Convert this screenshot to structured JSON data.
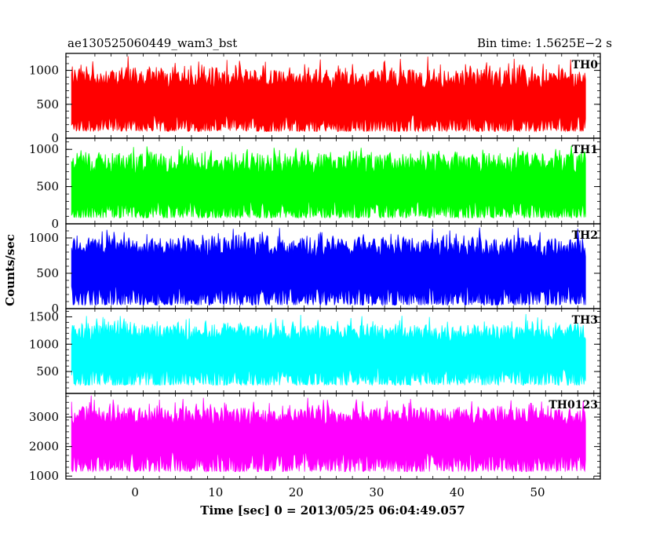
{
  "header": {
    "left_title": "ae130525060449_wam3_bst",
    "right_title": "Bin time: 1.5625E−2 s"
  },
  "chart_data": {
    "type": "line",
    "xlabel": "Time [sec] 0 = 2013/05/25 06:04:49.057",
    "ylabel": "Counts/sec",
    "xlim": [
      -8.6,
      57.8
    ],
    "x_range": [
      -7.9,
      56.0
    ],
    "xticks": [
      0,
      10,
      20,
      30,
      40,
      50
    ],
    "xtick_labels": [
      "0",
      "10",
      "20",
      "30",
      "40",
      "50"
    ],
    "bin_time": 0.015625,
    "grid": false,
    "series": [
      {
        "name": "TH0",
        "color": "#ff0000",
        "ylim": [
          0,
          1250
        ],
        "yticks": [
          0,
          500,
          1000
        ],
        "ytick_labels": [
          "0",
          "500",
          "1000"
        ],
        "mean": 500,
        "min_typical": 100,
        "max_typical": 1000,
        "peak": 1250
      },
      {
        "name": "TH1",
        "color": "#00ff00",
        "ylim": [
          0,
          1150
        ],
        "yticks": [
          0,
          500,
          1000
        ],
        "ytick_labels": [
          "0",
          "500",
          "1000"
        ],
        "mean": 450,
        "min_typical": 80,
        "max_typical": 950,
        "peak": 1080
      },
      {
        "name": "TH2",
        "color": "#0000ff",
        "ylim": [
          0,
          1200
        ],
        "yticks": [
          0,
          500,
          1000
        ],
        "ytick_labels": [
          "0",
          "500",
          "1000"
        ],
        "mean": 500,
        "min_typical": 50,
        "max_typical": 1000,
        "peak": 1180
      },
      {
        "name": "TH3",
        "color": "#00ffff",
        "ylim": [
          100,
          1650
        ],
        "yticks": [
          500,
          1000,
          1500
        ],
        "ytick_labels": [
          "500",
          "1000",
          "1500"
        ],
        "mean": 800,
        "min_typical": 250,
        "max_typical": 1350,
        "peak": 1600
      },
      {
        "name": "TH0123",
        "color": "#ff00ff",
        "ylim": [
          900,
          3800
        ],
        "yticks": [
          1000,
          2000,
          3000
        ],
        "ytick_labels": [
          "1000",
          "2000",
          "3000"
        ],
        "mean": 2250,
        "min_typical": 1150,
        "max_typical": 3300,
        "peak": 3750
      }
    ]
  }
}
